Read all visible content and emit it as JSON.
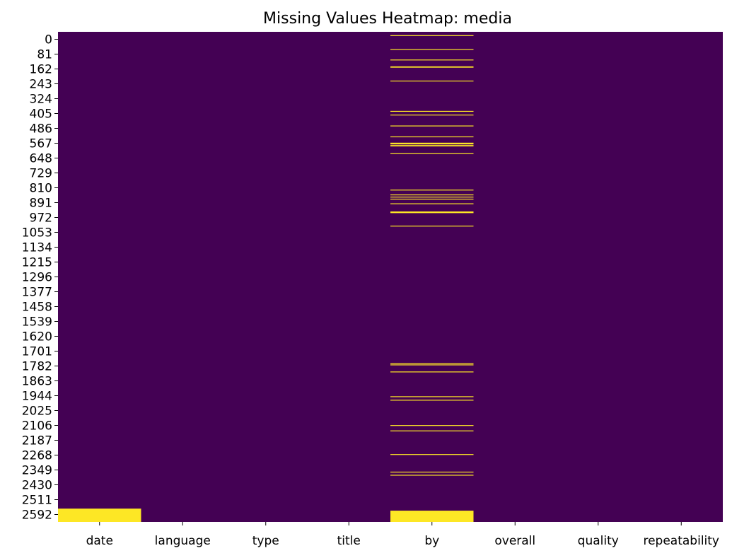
{
  "chart_data": {
    "type": "heatmap",
    "title": "Missing Values Heatmap: media",
    "columns": [
      "date",
      "language",
      "type",
      "title",
      "by",
      "overall",
      "quality",
      "repeatability"
    ],
    "y_tick_labels": [
      "0",
      "81",
      "162",
      "243",
      "324",
      "405",
      "486",
      "567",
      "648",
      "729",
      "810",
      "891",
      "972",
      "1053",
      "1134",
      "1215",
      "1296",
      "1377",
      "1458",
      "1539",
      "1620",
      "1701",
      "1782",
      "1863",
      "1944",
      "2025",
      "2106",
      "2187",
      "2268",
      "2349",
      "2430",
      "2511",
      "2592"
    ],
    "n_rows": 2652,
    "colors": {
      "present": "#440154",
      "missing": "#fde725"
    },
    "missing_row_ranges": {
      "date": [
        [
          2580,
          2651
        ]
      ],
      "by": [
        [
          18,
          20
        ],
        [
          93,
          95
        ],
        [
          150,
          151
        ],
        [
          187,
          193
        ],
        [
          264,
          265
        ],
        [
          428,
          431
        ],
        [
          448,
          450
        ],
        [
          507,
          508
        ],
        [
          566,
          567
        ],
        [
          600,
          608
        ],
        [
          613,
          619
        ],
        [
          657,
          660
        ],
        [
          854,
          856
        ],
        [
          880,
          883
        ],
        [
          892,
          894
        ],
        [
          903,
          906
        ],
        [
          928,
          930
        ],
        [
          972,
          980
        ],
        [
          1049,
          1051
        ],
        [
          1793,
          1796
        ],
        [
          1800,
          1802
        ],
        [
          1838,
          1840
        ],
        [
          1972,
          1974
        ],
        [
          1991,
          1994
        ],
        [
          2128,
          2130
        ],
        [
          2157,
          2159
        ],
        [
          2285,
          2287
        ],
        [
          2380,
          2382
        ],
        [
          2397,
          2400
        ],
        [
          2591,
          2651
        ]
      ]
    },
    "colorbar": false,
    "grid": false
  }
}
